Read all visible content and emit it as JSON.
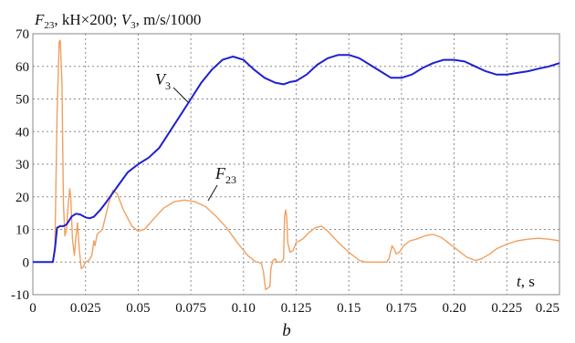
{
  "chart_data": {
    "type": "line",
    "ylabel_parts": [
      "F",
      "23",
      ", kH×200; ",
      "V",
      "3",
      ", m/s/1000"
    ],
    "xlabel_parts": [
      "t",
      ", s"
    ],
    "caption": "b",
    "xlim": [
      0,
      0.25
    ],
    "ylim": [
      -10,
      70
    ],
    "x_ticks": [
      0,
      0.025,
      0.05,
      0.075,
      0.1,
      0.125,
      0.15,
      0.175,
      0.2,
      0.225,
      0.25
    ],
    "x_tick_labels": [
      "0",
      "0.025",
      "0.05",
      "0.075",
      "0.10",
      "0.125",
      "0.15",
      "0.175",
      "0.20",
      "0.225",
      "0.25"
    ],
    "y_ticks": [
      -10,
      0,
      10,
      20,
      30,
      40,
      50,
      60,
      70
    ],
    "y_tick_labels": [
      "-10",
      "0",
      "10",
      "20",
      "30",
      "40",
      "50",
      "60",
      "70"
    ],
    "grid": true,
    "series": [
      {
        "name": "V3",
        "label_parts": [
          "V",
          "3"
        ],
        "color": "#1f1fd0",
        "points": [
          [
            0,
            0
          ],
          [
            0.0045,
            0
          ],
          [
            0.005,
            0
          ],
          [
            0.0095,
            0
          ],
          [
            0.0105,
            4
          ],
          [
            0.0115,
            10.5
          ],
          [
            0.013,
            11
          ],
          [
            0.0145,
            11
          ],
          [
            0.016,
            11.5
          ],
          [
            0.0185,
            14
          ],
          [
            0.0205,
            14.8
          ],
          [
            0.0225,
            14.6
          ],
          [
            0.025,
            13.7
          ],
          [
            0.027,
            13.4
          ],
          [
            0.029,
            13.9
          ],
          [
            0.032,
            16
          ],
          [
            0.035,
            18.5
          ],
          [
            0.04,
            23
          ],
          [
            0.045,
            27.5
          ],
          [
            0.05,
            30
          ],
          [
            0.055,
            32
          ],
          [
            0.06,
            35
          ],
          [
            0.065,
            40
          ],
          [
            0.07,
            45
          ],
          [
            0.075,
            50
          ],
          [
            0.08,
            55
          ],
          [
            0.085,
            59
          ],
          [
            0.09,
            62
          ],
          [
            0.095,
            63
          ],
          [
            0.1,
            62
          ],
          [
            0.105,
            59
          ],
          [
            0.11,
            56.5
          ],
          [
            0.115,
            55
          ],
          [
            0.119,
            54.5
          ],
          [
            0.122,
            55.2
          ],
          [
            0.125,
            55.5
          ],
          [
            0.13,
            57.5
          ],
          [
            0.135,
            60.5
          ],
          [
            0.14,
            62.5
          ],
          [
            0.145,
            63.5
          ],
          [
            0.15,
            63.5
          ],
          [
            0.155,
            62.5
          ],
          [
            0.16,
            60.5
          ],
          [
            0.165,
            58.5
          ],
          [
            0.17,
            56.5
          ],
          [
            0.175,
            56.5
          ],
          [
            0.18,
            57.5
          ],
          [
            0.185,
            59.5
          ],
          [
            0.19,
            61
          ],
          [
            0.195,
            62
          ],
          [
            0.2,
            62
          ],
          [
            0.205,
            61.5
          ],
          [
            0.21,
            60
          ],
          [
            0.215,
            58.5
          ],
          [
            0.22,
            57.5
          ],
          [
            0.225,
            57.5
          ],
          [
            0.23,
            58
          ],
          [
            0.235,
            58.5
          ],
          [
            0.24,
            59.3
          ],
          [
            0.245,
            60
          ],
          [
            0.25,
            61
          ]
        ]
      },
      {
        "name": "F23",
        "label_parts": [
          "F",
          "23"
        ],
        "color": "#f0a060",
        "points": [
          [
            0,
            0
          ],
          [
            0.0095,
            0
          ],
          [
            0.0105,
            5
          ],
          [
            0.0115,
            45
          ],
          [
            0.0125,
            67.5
          ],
          [
            0.013,
            68
          ],
          [
            0.0138,
            55
          ],
          [
            0.0145,
            18
          ],
          [
            0.0152,
            8
          ],
          [
            0.016,
            10
          ],
          [
            0.0168,
            18
          ],
          [
            0.0175,
            22.5
          ],
          [
            0.018,
            20
          ],
          [
            0.0188,
            7
          ],
          [
            0.0197,
            2
          ],
          [
            0.0205,
            8
          ],
          [
            0.0212,
            12
          ],
          [
            0.022,
            4
          ],
          [
            0.023,
            -2
          ],
          [
            0.024,
            -1.5
          ],
          [
            0.025,
            0
          ],
          [
            0.0265,
            0.5
          ],
          [
            0.028,
            2
          ],
          [
            0.029,
            6.5
          ],
          [
            0.0295,
            5
          ],
          [
            0.0305,
            8.5
          ],
          [
            0.033,
            10
          ],
          [
            0.036,
            18
          ],
          [
            0.038,
            22
          ],
          [
            0.04,
            21
          ],
          [
            0.043,
            16
          ],
          [
            0.047,
            11
          ],
          [
            0.05,
            9.5
          ],
          [
            0.053,
            10
          ],
          [
            0.057,
            13
          ],
          [
            0.062,
            16.5
          ],
          [
            0.067,
            18.5
          ],
          [
            0.072,
            19
          ],
          [
            0.077,
            18.5
          ],
          [
            0.082,
            17
          ],
          [
            0.087,
            14
          ],
          [
            0.092,
            10.5
          ],
          [
            0.097,
            6
          ],
          [
            0.102,
            2
          ],
          [
            0.106,
            0
          ],
          [
            0.107,
            0
          ],
          [
            0.1085,
            -0.5
          ],
          [
            0.1095,
            -3
          ],
          [
            0.1105,
            -8.5
          ],
          [
            0.1115,
            -8
          ],
          [
            0.1125,
            -7.5
          ],
          [
            0.113,
            -2
          ],
          [
            0.114,
            0.5
          ],
          [
            0.115,
            1
          ],
          [
            0.116,
            0
          ],
          [
            0.118,
            0
          ],
          [
            0.119,
            1
          ],
          [
            0.1195,
            14
          ],
          [
            0.12,
            16
          ],
          [
            0.1205,
            14
          ],
          [
            0.121,
            6
          ],
          [
            0.122,
            3
          ],
          [
            0.1235,
            3.5
          ],
          [
            0.125,
            6
          ],
          [
            0.128,
            7
          ],
          [
            0.131,
            9
          ],
          [
            0.134,
            10.5
          ],
          [
            0.137,
            11
          ],
          [
            0.14,
            9.5
          ],
          [
            0.145,
            6
          ],
          [
            0.15,
            3
          ],
          [
            0.155,
            0.5
          ],
          [
            0.158,
            0
          ],
          [
            0.165,
            0
          ],
          [
            0.168,
            0
          ],
          [
            0.169,
            1
          ],
          [
            0.1705,
            5
          ],
          [
            0.1715,
            4
          ],
          [
            0.1725,
            2.5
          ],
          [
            0.174,
            3
          ],
          [
            0.176,
            5
          ],
          [
            0.179,
            6.5
          ],
          [
            0.182,
            7
          ],
          [
            0.186,
            8
          ],
          [
            0.19,
            8.5
          ],
          [
            0.194,
            7.5
          ],
          [
            0.198,
            5.5
          ],
          [
            0.202,
            3.5
          ],
          [
            0.206,
            1.5
          ],
          [
            0.21,
            0.5
          ],
          [
            0.213,
            1
          ],
          [
            0.217,
            2.5
          ],
          [
            0.22,
            4
          ],
          [
            0.225,
            5.5
          ],
          [
            0.23,
            6.5
          ],
          [
            0.235,
            7
          ],
          [
            0.24,
            7.3
          ],
          [
            0.245,
            7
          ],
          [
            0.25,
            6.5
          ]
        ]
      }
    ]
  }
}
